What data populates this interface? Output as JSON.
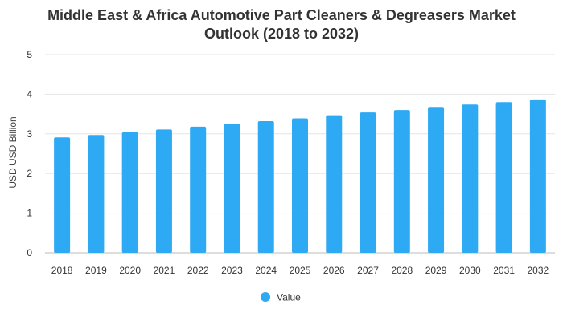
{
  "chart_data": {
    "type": "bar",
    "title_lines": [
      "Middle East & Africa Automotive Part Cleaners & Degreasers Market",
      "Outlook (2018 to 2032)"
    ],
    "xlabel": "",
    "ylabel": "USD USD Billion",
    "ylim": [
      0,
      5
    ],
    "yticks": [
      "0",
      "1",
      "2",
      "3",
      "4",
      "5"
    ],
    "grid": true,
    "legend_position": "bottom",
    "categories": [
      "2018",
      "2019",
      "2020",
      "2021",
      "2022",
      "2023",
      "2024",
      "2025",
      "2026",
      "2027",
      "2028",
      "2029",
      "2030",
      "2031",
      "2032"
    ],
    "series": [
      {
        "name": "Value",
        "color": "#2eaaf5",
        "values": [
          2.91,
          2.97,
          3.04,
          3.11,
          3.18,
          3.25,
          3.32,
          3.39,
          3.47,
          3.54,
          3.6,
          3.68,
          3.74,
          3.8,
          3.87
        ]
      }
    ]
  }
}
